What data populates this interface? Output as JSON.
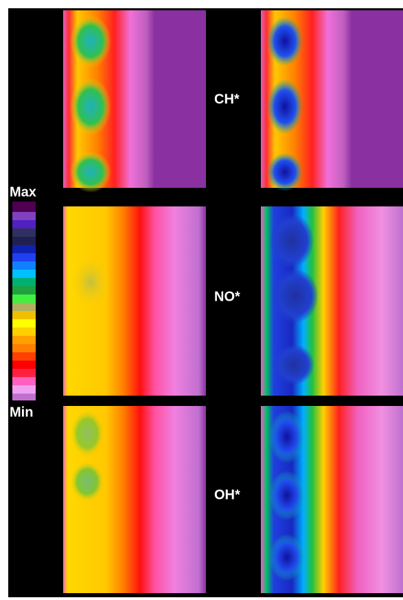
{
  "colorbar": {
    "max_label": "Max",
    "min_label": "Min"
  },
  "rows": [
    {
      "label": "CH*"
    },
    {
      "label": "NO*"
    },
    {
      "label": "OH*"
    }
  ]
}
